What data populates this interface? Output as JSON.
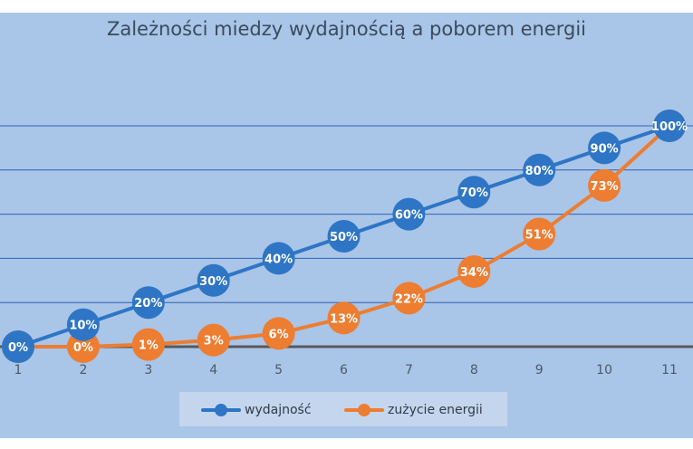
{
  "chart_data": {
    "type": "line",
    "title": "Zależności miedzy wydajnością a poborem energii",
    "xlabel": "",
    "ylabel": "",
    "categories": [
      "1",
      "2",
      "3",
      "4",
      "5",
      "6",
      "7",
      "8",
      "9",
      "10",
      "11"
    ],
    "ylim": [
      0,
      100
    ],
    "grid": true,
    "legend_position": "bottom",
    "series": [
      {
        "name": "wydajność",
        "color": "#2e75c5",
        "values": [
          0,
          10,
          20,
          30,
          40,
          50,
          60,
          70,
          80,
          90,
          100
        ],
        "labels": [
          "0%",
          "10%",
          "20%",
          "30%",
          "40%",
          "50%",
          "60%",
          "70%",
          "80%",
          "90%",
          "100%"
        ]
      },
      {
        "name": "zużycie energii",
        "color": "#ed7d31",
        "values": [
          0,
          0,
          1,
          3,
          6,
          13,
          22,
          34,
          51,
          73,
          100
        ],
        "labels": [
          "0%",
          "0%",
          "1%",
          "3%",
          "6%",
          "13%",
          "22%",
          "34%",
          "51%",
          "73%",
          "100%"
        ]
      }
    ]
  }
}
